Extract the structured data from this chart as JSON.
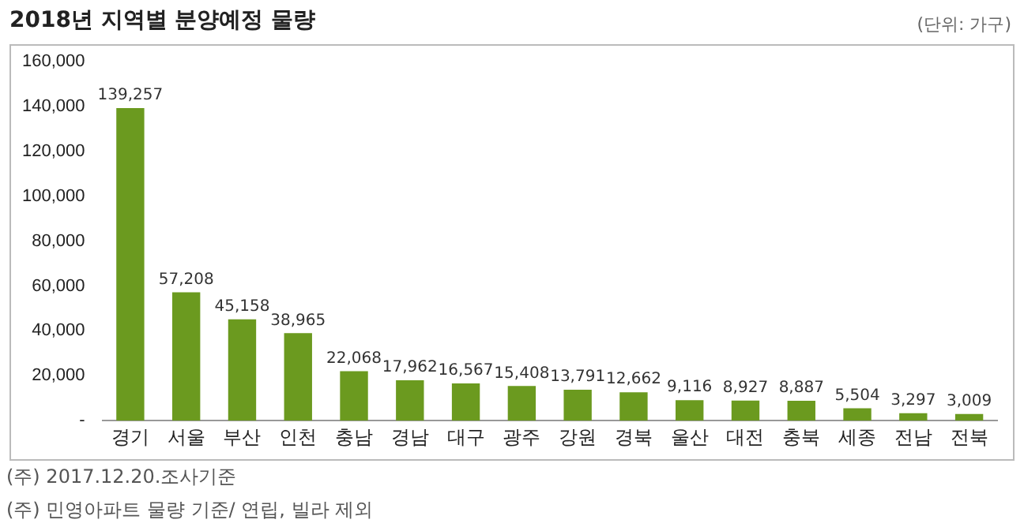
{
  "chart_data": {
    "type": "bar",
    "title": "2018년 지역별 분양예정 물량",
    "categories": [
      "경기",
      "서울",
      "부산",
      "인천",
      "충남",
      "경남",
      "대구",
      "광주",
      "강원",
      "경북",
      "울산",
      "대전",
      "충북",
      "세종",
      "전남",
      "전북"
    ],
    "values": [
      139257,
      57208,
      45158,
      38965,
      22068,
      17962,
      16567,
      15408,
      13791,
      12662,
      9116,
      8927,
      8887,
      5504,
      3297,
      3009
    ],
    "value_labels": [
      "139,257",
      "57,208",
      "45,158",
      "38,965",
      "22,068",
      "17,962",
      "16,567",
      "15,408",
      "13,791",
      "12,662",
      "9,116",
      "8,927",
      "8,887",
      "5,504",
      "3,297",
      "3,009"
    ],
    "color": "#6b9a1f",
    "ylim": [
      0,
      160000
    ],
    "yticks": [
      {
        "value": 0,
        "label": "-"
      },
      {
        "value": 20000,
        "label": "20,000"
      },
      {
        "value": 40000,
        "label": "40,000"
      },
      {
        "value": 60000,
        "label": "60,000"
      },
      {
        "value": 80000,
        "label": "80,000"
      },
      {
        "value": 100000,
        "label": "100,000"
      },
      {
        "value": 120000,
        "label": "120,000"
      },
      {
        "value": 140000,
        "label": "140,000"
      },
      {
        "value": 160000,
        "label": "160,000"
      }
    ],
    "grid": false,
    "legend": false,
    "annotations": [
      "(단위: 가구)",
      "(주) 2017.12.20.조사기준",
      "(주) 민영아파트 물량 기준/ 연립, 빌라 제외"
    ]
  }
}
